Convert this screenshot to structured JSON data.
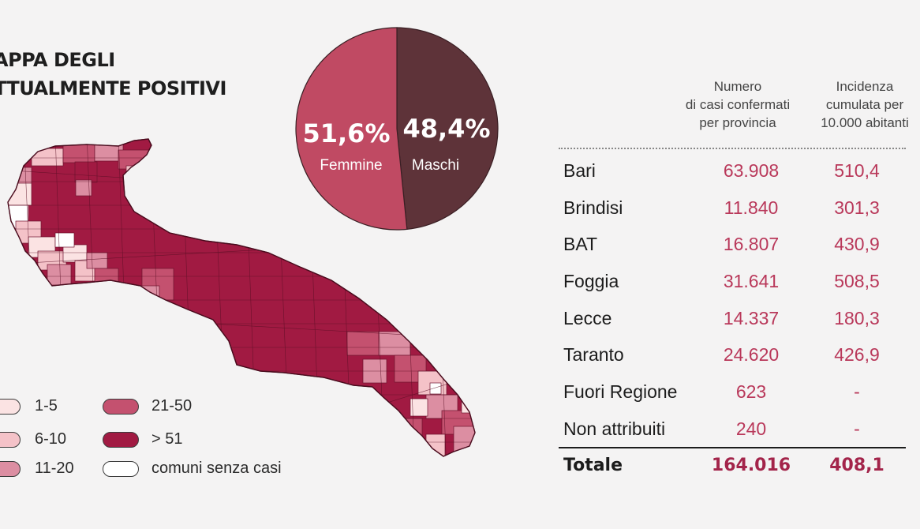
{
  "title": {
    "line1": "APPA DEGLI",
    "line2": "TTUALMENTE POSITIVI"
  },
  "colors": {
    "c1_5": "#fbe3e3",
    "c6_10": "#f4c2c8",
    "c11_20": "#dc8ea2",
    "c21_50": "#c4516f",
    "c51": "#a11a42",
    "none": "#ffffff",
    "femmine": "#c04a63",
    "maschi": "#5e3339"
  },
  "legend": [
    {
      "label": "1-5",
      "color": "#fbe3e3"
    },
    {
      "label": "6-10",
      "color": "#f4c2c8"
    },
    {
      "label": "11-20",
      "color": "#dc8ea2"
    },
    {
      "label": "21-50",
      "color": "#c4516f"
    },
    {
      "label": "> 51",
      "color": "#a11a42"
    },
    {
      "label": "comuni senza casi",
      "color": "#ffffff"
    }
  ],
  "chart_data": {
    "type": "pie",
    "slices": [
      {
        "label": "Femmine",
        "pct_text": "51,6%",
        "value": 51.6,
        "color": "#c04a63"
      },
      {
        "label": "Maschi",
        "pct_text": "48,4%",
        "value": 48.4,
        "color": "#5e3339"
      }
    ]
  },
  "table": {
    "headers": {
      "col1": [
        "Numero",
        "di casi confermati",
        "per provincia"
      ],
      "col2": [
        "Incidenza",
        "cumulata per",
        "10.000 abitanti"
      ]
    },
    "rows": [
      {
        "name": "Bari",
        "casi": "63.908",
        "incidenza": "510,4"
      },
      {
        "name": "Brindisi",
        "casi": "11.840",
        "incidenza": "301,3"
      },
      {
        "name": "BAT",
        "casi": "16.807",
        "incidenza": "430,9"
      },
      {
        "name": "Foggia",
        "casi": "31.641",
        "incidenza": "508,5"
      },
      {
        "name": "Lecce",
        "casi": "14.337",
        "incidenza": "180,3"
      },
      {
        "name": "Taranto",
        "casi": "24.620",
        "incidenza": "426,9"
      },
      {
        "name": "Fuori Regione",
        "casi": "623",
        "incidenza": "-"
      },
      {
        "name": "Non attribuiti",
        "casi": "240",
        "incidenza": "-"
      }
    ],
    "total": {
      "name": "Totale",
      "casi": "164.016",
      "incidenza": "408,1"
    }
  }
}
